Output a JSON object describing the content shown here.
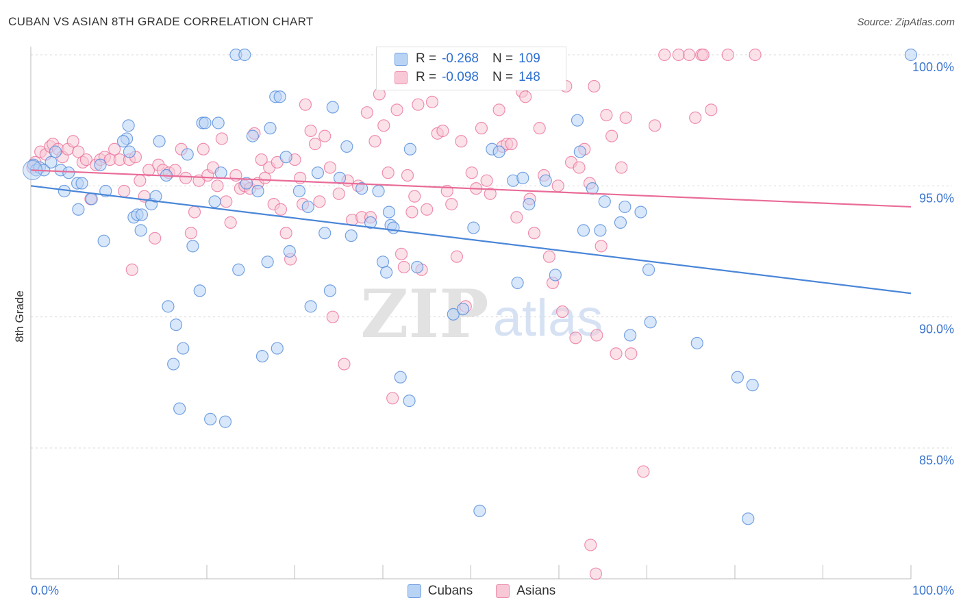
{
  "title": "CUBAN VS ASIAN 8TH GRADE CORRELATION CHART",
  "source": "Source: ZipAtlas.com",
  "watermark": {
    "zip": "ZIP",
    "atlas": "atlas"
  },
  "legend_top": [
    {
      "r_label": "R =",
      "r_value": "-0.268",
      "n_label": "N =",
      "n_value": "109",
      "color": "#4a86d8"
    },
    {
      "r_label": "R =",
      "r_value": "-0.098",
      "n_label": "N =",
      "n_value": "148",
      "color": "#e96c98"
    }
  ],
  "legend_bottom": [
    {
      "label": "Cubans",
      "color": "#4a86d8"
    },
    {
      "label": "Asians",
      "color": "#e96c98"
    }
  ],
  "chart_data": {
    "type": "scatter",
    "title": "CUBAN VS ASIAN 8TH GRADE CORRELATION CHART",
    "xlabel": "",
    "ylabel": "8th Grade",
    "xlim": [
      0,
      100
    ],
    "ylim": [
      80.0,
      100.8
    ],
    "x_tick_labels": [
      "0.0%",
      "100.0%"
    ],
    "y_ticks": [
      85,
      90,
      95,
      100
    ],
    "y_tick_labels": [
      "85.0%",
      "90.0%",
      "95.0%",
      "100.0%"
    ],
    "grid": "horizontal dashed",
    "legend_placement": "top-center",
    "series": [
      {
        "name": "Cubans",
        "color": "#4a86d8",
        "fill": "#b9d3f5",
        "trend": {
          "x": [
            0,
            100
          ],
          "y": [
            95.0,
            90.9
          ]
        },
        "points": [
          [
            0.3,
            95.8
          ],
          [
            0.6,
            95.6
          ],
          [
            1.0,
            95.7
          ],
          [
            1.5,
            95.6
          ],
          [
            2.3,
            95.9
          ],
          [
            2.8,
            96.3
          ],
          [
            3.4,
            95.6
          ],
          [
            4.3,
            95.5
          ],
          [
            3.8,
            94.8
          ],
          [
            5.3,
            95.1
          ],
          [
            5.8,
            95.1
          ],
          [
            5.4,
            94.1
          ],
          [
            6.9,
            94.5
          ],
          [
            7.9,
            95.8
          ],
          [
            8.5,
            94.8
          ],
          [
            8.3,
            92.9
          ],
          [
            10.9,
            96.8
          ],
          [
            11.2,
            96.3
          ],
          [
            10.5,
            96.7
          ],
          [
            11.1,
            97.3
          ],
          [
            11.7,
            93.8
          ],
          [
            12.1,
            93.9
          ],
          [
            12.6,
            93.9
          ],
          [
            12.5,
            93.3
          ],
          [
            13.7,
            94.3
          ],
          [
            14.2,
            94.6
          ],
          [
            14.6,
            96.7
          ],
          [
            15.4,
            95.4
          ],
          [
            15.6,
            90.4
          ],
          [
            16.5,
            89.7
          ],
          [
            16.2,
            88.2
          ],
          [
            16.9,
            86.5
          ],
          [
            17.3,
            88.8
          ],
          [
            17.8,
            96.2
          ],
          [
            18.4,
            92.7
          ],
          [
            19.2,
            91.0
          ],
          [
            19.5,
            97.4
          ],
          [
            19.8,
            97.4
          ],
          [
            20.4,
            86.1
          ],
          [
            20.9,
            94.4
          ],
          [
            21.3,
            97.4
          ],
          [
            21.6,
            95.5
          ],
          [
            22.1,
            86.0
          ],
          [
            23.3,
            100.0
          ],
          [
            24.3,
            100.0
          ],
          [
            23.6,
            91.8
          ],
          [
            24.5,
            95.1
          ],
          [
            25.2,
            96.9
          ],
          [
            25.8,
            94.8
          ],
          [
            26.3,
            88.5
          ],
          [
            26.9,
            92.1
          ],
          [
            27.2,
            97.2
          ],
          [
            27.8,
            98.4
          ],
          [
            28.3,
            98.4
          ],
          [
            28.0,
            88.8
          ],
          [
            29.0,
            96.1
          ],
          [
            29.4,
            92.5
          ],
          [
            30.5,
            94.8
          ],
          [
            31.5,
            94.2
          ],
          [
            31.8,
            90.4
          ],
          [
            32.6,
            95.5
          ],
          [
            33.4,
            93.2
          ],
          [
            34.0,
            91.0
          ],
          [
            34.3,
            98.0
          ],
          [
            35.1,
            95.3
          ],
          [
            35.9,
            96.5
          ],
          [
            36.4,
            93.1
          ],
          [
            37.6,
            94.9
          ],
          [
            38.6,
            93.6
          ],
          [
            39.5,
            94.8
          ],
          [
            40.0,
            92.1
          ],
          [
            40.4,
            91.7
          ],
          [
            40.7,
            94.0
          ],
          [
            40.9,
            93.5
          ],
          [
            41.2,
            93.4
          ],
          [
            42.0,
            87.7
          ],
          [
            43.0,
            86.8
          ],
          [
            43.1,
            96.4
          ],
          [
            43.9,
            91.9
          ],
          [
            48.0,
            90.1
          ],
          [
            49.1,
            90.3
          ],
          [
            50.3,
            93.4
          ],
          [
            51.0,
            82.6
          ],
          [
            52.4,
            96.4
          ],
          [
            53.2,
            96.3
          ],
          [
            54.8,
            95.2
          ],
          [
            55.9,
            95.3
          ],
          [
            55.3,
            91.3
          ],
          [
            56.6,
            94.3
          ],
          [
            58.5,
            95.2
          ],
          [
            59.6,
            91.6
          ],
          [
            62.1,
            97.5
          ],
          [
            62.4,
            96.3
          ],
          [
            62.8,
            93.3
          ],
          [
            63.8,
            94.9
          ],
          [
            64.7,
            93.3
          ],
          [
            65.2,
            94.4
          ],
          [
            67.0,
            93.6
          ],
          [
            67.5,
            94.2
          ],
          [
            68.1,
            89.3
          ],
          [
            69.3,
            94.0
          ],
          [
            70.4,
            89.8
          ],
          [
            70.2,
            91.8
          ],
          [
            75.7,
            89.0
          ],
          [
            80.3,
            87.7
          ],
          [
            82.0,
            87.4
          ],
          [
            81.5,
            82.3
          ],
          [
            100.0,
            100.0
          ]
        ]
      },
      {
        "name": "Asians",
        "color": "#e96c98",
        "fill": "#f8c8d6",
        "trend": {
          "x": [
            0,
            100
          ],
          "y": [
            95.6,
            94.2
          ]
        },
        "points": [
          [
            0.2,
            95.7
          ],
          [
            0.5,
            95.9
          ],
          [
            1.1,
            96.3
          ],
          [
            1.7,
            96.2
          ],
          [
            2.2,
            96.5
          ],
          [
            2.5,
            96.6
          ],
          [
            3.1,
            96.4
          ],
          [
            3.6,
            96.1
          ],
          [
            4.2,
            96.4
          ],
          [
            4.8,
            96.7
          ],
          [
            5.4,
            96.3
          ],
          [
            5.9,
            95.9
          ],
          [
            6.3,
            96.0
          ],
          [
            6.8,
            94.5
          ],
          [
            7.4,
            95.8
          ],
          [
            7.9,
            96.0
          ],
          [
            8.4,
            96.1
          ],
          [
            9.0,
            96.0
          ],
          [
            9.5,
            96.4
          ],
          [
            10.1,
            96.0
          ],
          [
            10.6,
            94.8
          ],
          [
            11.2,
            96.0
          ],
          [
            11.9,
            96.1
          ],
          [
            11.5,
            91.8
          ],
          [
            12.4,
            95.2
          ],
          [
            12.9,
            94.6
          ],
          [
            13.4,
            95.6
          ],
          [
            14.1,
            93.0
          ],
          [
            14.5,
            95.8
          ],
          [
            15.0,
            95.6
          ],
          [
            15.7,
            95.5
          ],
          [
            16.4,
            95.6
          ],
          [
            17.1,
            96.4
          ],
          [
            17.6,
            95.3
          ],
          [
            18.2,
            93.2
          ],
          [
            18.6,
            94.0
          ],
          [
            19.1,
            95.2
          ],
          [
            19.6,
            96.4
          ],
          [
            20.1,
            95.4
          ],
          [
            20.7,
            95.7
          ],
          [
            21.2,
            95.0
          ],
          [
            21.7,
            96.8
          ],
          [
            22.2,
            94.4
          ],
          [
            22.7,
            93.6
          ],
          [
            23.3,
            95.4
          ],
          [
            23.8,
            94.9
          ],
          [
            24.3,
            95.0
          ],
          [
            24.9,
            94.9
          ],
          [
            25.4,
            97.0
          ],
          [
            25.8,
            95.1
          ],
          [
            26.2,
            96.0
          ],
          [
            26.6,
            95.3
          ],
          [
            27.1,
            95.7
          ],
          [
            27.6,
            94.3
          ],
          [
            28.0,
            95.9
          ],
          [
            28.4,
            94.1
          ],
          [
            29.0,
            93.2
          ],
          [
            29.5,
            92.2
          ],
          [
            30.0,
            96.0
          ],
          [
            30.6,
            95.3
          ],
          [
            30.9,
            94.3
          ],
          [
            31.2,
            98.1
          ],
          [
            31.8,
            97.1
          ],
          [
            32.3,
            96.6
          ],
          [
            32.8,
            94.4
          ],
          [
            33.4,
            96.9
          ],
          [
            34.0,
            95.7
          ],
          [
            34.3,
            90.0
          ],
          [
            35.0,
            94.7
          ],
          [
            35.6,
            88.2
          ],
          [
            36.0,
            95.2
          ],
          [
            36.5,
            93.7
          ],
          [
            37.2,
            95.0
          ],
          [
            37.6,
            93.8
          ],
          [
            38.2,
            97.8
          ],
          [
            38.6,
            93.8
          ],
          [
            39.1,
            96.7
          ],
          [
            39.6,
            98.5
          ],
          [
            40.1,
            97.3
          ],
          [
            40.6,
            95.5
          ],
          [
            41.1,
            86.9
          ],
          [
            41.6,
            97.9
          ],
          [
            42.1,
            92.4
          ],
          [
            42.4,
            91.9
          ],
          [
            42.8,
            95.4
          ],
          [
            43.3,
            94.0
          ],
          [
            43.6,
            94.6
          ],
          [
            44.0,
            98.1
          ],
          [
            44.4,
            91.8
          ],
          [
            45.0,
            94.1
          ],
          [
            45.6,
            98.2
          ],
          [
            46.2,
            97.0
          ],
          [
            46.8,
            97.1
          ],
          [
            47.3,
            94.8
          ],
          [
            47.8,
            94.3
          ],
          [
            48.4,
            92.3
          ],
          [
            48.9,
            96.7
          ],
          [
            49.4,
            90.4
          ],
          [
            50.1,
            95.5
          ],
          [
            50.6,
            94.9
          ],
          [
            51.2,
            97.2
          ],
          [
            51.8,
            95.2
          ],
          [
            52.2,
            94.7
          ],
          [
            53.2,
            97.9
          ],
          [
            53.6,
            96.5
          ],
          [
            54.1,
            96.6
          ],
          [
            54.6,
            96.6
          ],
          [
            55.2,
            93.8
          ],
          [
            55.8,
            98.6
          ],
          [
            56.2,
            98.4
          ],
          [
            56.7,
            94.5
          ],
          [
            57.2,
            93.2
          ],
          [
            57.8,
            97.2
          ],
          [
            58.3,
            95.4
          ],
          [
            58.9,
            92.3
          ],
          [
            59.3,
            91.3
          ],
          [
            59.9,
            95.0
          ],
          [
            60.4,
            90.2
          ],
          [
            60.8,
            98.8
          ],
          [
            61.4,
            95.9
          ],
          [
            61.9,
            89.2
          ],
          [
            62.3,
            95.7
          ],
          [
            62.9,
            96.4
          ],
          [
            63.5,
            95.1
          ],
          [
            64.0,
            98.8
          ],
          [
            64.3,
            89.3
          ],
          [
            64.8,
            92.7
          ],
          [
            65.4,
            97.7
          ],
          [
            66.0,
            96.9
          ],
          [
            66.5,
            88.6
          ],
          [
            67.1,
            95.7
          ],
          [
            67.6,
            97.6
          ],
          [
            68.2,
            88.6
          ],
          [
            69.6,
            84.1
          ],
          [
            70.9,
            97.3
          ],
          [
            72.0,
            100.0
          ],
          [
            73.6,
            100.0
          ],
          [
            74.8,
            100.0
          ],
          [
            76.2,
            100.0
          ],
          [
            76.4,
            100.0
          ],
          [
            77.3,
            97.9
          ],
          [
            75.5,
            97.6
          ],
          [
            82.3,
            100.0
          ],
          [
            79.2,
            100.0
          ],
          [
            63.6,
            81.3
          ],
          [
            64.2,
            80.2
          ]
        ]
      }
    ]
  }
}
